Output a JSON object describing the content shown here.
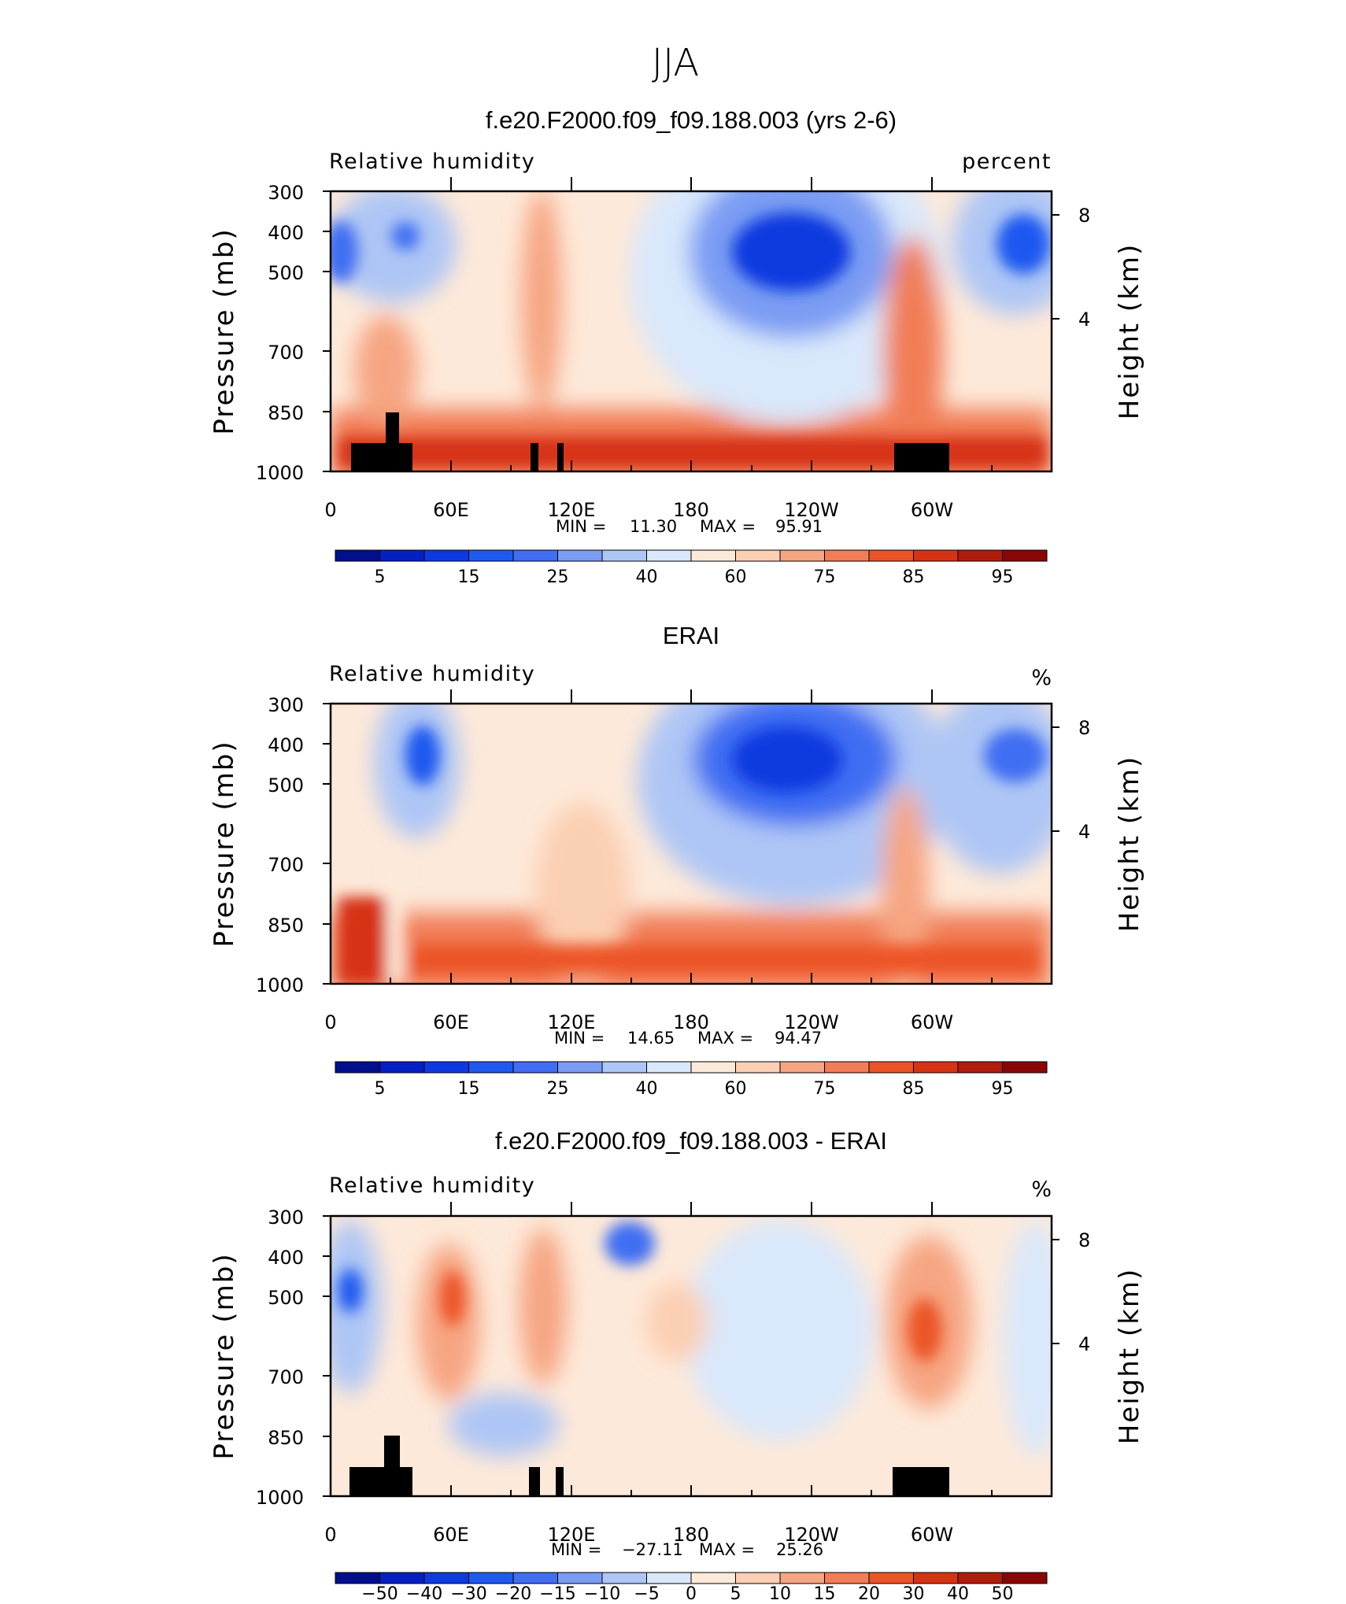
{
  "figure": {
    "title": "JJA"
  },
  "colors": {
    "rh_scale": [
      "#000f8c",
      "#0520c2",
      "#0d3ae0",
      "#1f59f0",
      "#416ef2",
      "#7a9cf3",
      "#aec6f5",
      "#d9e8fb",
      "#fde9d9",
      "#fbcfb3",
      "#f6a582",
      "#f17d56",
      "#ec5428",
      "#d63314",
      "#b01c0c",
      "#8a0606"
    ],
    "terrain": "#000000"
  },
  "chart_data": [
    {
      "type": "contour",
      "title": "f.e20.F2000.f09_f09.188.003 (yrs 2-6)",
      "left_label": "Relative humidity",
      "right_label": "percent",
      "ylabel": "Pressure (mb)",
      "ylabel_right": "Height (km)",
      "yticks": [
        "300",
        "400",
        "500",
        "700",
        "850",
        "1000"
      ],
      "yticks_right": [
        "8",
        "4"
      ],
      "xticks": [
        "0",
        "60E",
        "120E",
        "180",
        "120W",
        "60W"
      ],
      "min_label": "MIN =",
      "min_value": "11.30",
      "max_label": "MAX =",
      "max_value": "95.91",
      "colorbar_labels": [
        "5",
        "15",
        "25",
        "40",
        "60",
        "75",
        "85",
        "95"
      ]
    },
    {
      "type": "contour",
      "title": "ERAI",
      "left_label": "Relative humidity",
      "right_label": "%",
      "ylabel": "Pressure (mb)",
      "ylabel_right": "Height (km)",
      "yticks": [
        "300",
        "400",
        "500",
        "700",
        "850",
        "1000"
      ],
      "yticks_right": [
        "8",
        "4"
      ],
      "xticks": [
        "0",
        "60E",
        "120E",
        "180",
        "120W",
        "60W"
      ],
      "min_label": "MIN =",
      "min_value": "14.65",
      "max_label": "MAX =",
      "max_value": "94.47",
      "colorbar_labels": [
        "5",
        "15",
        "25",
        "40",
        "60",
        "75",
        "85",
        "95"
      ]
    },
    {
      "type": "contour",
      "title": "f.e20.F2000.f09_f09.188.003 - ERAI",
      "left_label": "Relative humidity",
      "right_label": "%",
      "ylabel": "Pressure (mb)",
      "ylabel_right": "Height (km)",
      "yticks": [
        "300",
        "400",
        "500",
        "700",
        "850",
        "1000"
      ],
      "yticks_right": [
        "8",
        "4"
      ],
      "xticks": [
        "0",
        "60E",
        "120E",
        "180",
        "120W",
        "60W"
      ],
      "min_label": "MIN =",
      "min_value": "−27.11",
      "max_label": "MAX =",
      "max_value": "25.26",
      "colorbar_labels": [
        "−50",
        "−40",
        "−30",
        "−20",
        "−15",
        "−10",
        "−5",
        "0",
        "5",
        "10",
        "15",
        "20",
        "30",
        "40",
        "50"
      ]
    }
  ]
}
